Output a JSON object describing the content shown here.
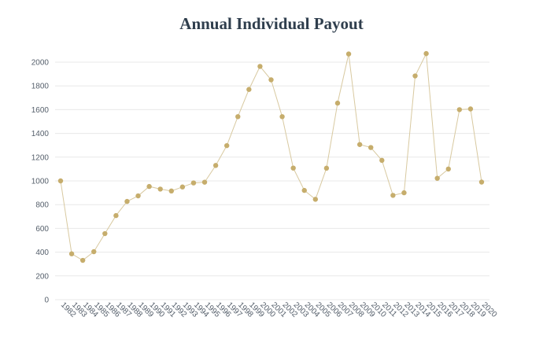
{
  "chart_data": {
    "type": "line",
    "title": "Annual Individual Payout",
    "xlabel": "",
    "ylabel": "",
    "ylim": [
      0,
      2000
    ],
    "yticks": [
      0,
      200,
      400,
      600,
      800,
      1000,
      1200,
      1400,
      1600,
      1800,
      2000
    ],
    "grid": true,
    "legend": "none",
    "x": [
      "1982",
      "1983",
      "1984",
      "1985",
      "1986",
      "1987",
      "1988",
      "1989",
      "1990",
      "1991",
      "1992",
      "1993",
      "1994",
      "1995",
      "1996",
      "1997",
      "1998",
      "1999",
      "2000",
      "2001",
      "2002",
      "2003",
      "2004",
      "2005",
      "2006",
      "2007",
      "2008",
      "2009",
      "2010",
      "2011",
      "2012",
      "2013",
      "2014",
      "2015",
      "2016",
      "2017",
      "2018",
      "2019",
      "2020"
    ],
    "series": [
      {
        "name": "",
        "values": [
          1000,
          386,
          331,
          404,
          556,
          708,
          827,
          874,
          953,
          931,
          915,
          949,
          983,
          989,
          1130,
          1297,
          1541,
          1770,
          1964,
          1851,
          1541,
          1108,
          920,
          845,
          1107,
          1655,
          2069,
          1306,
          1281,
          1173,
          878,
          900,
          1884,
          2072,
          1022,
          1100,
          1600,
          1606,
          990
        ]
      }
    ],
    "colors": {
      "line": "#d8c9a0",
      "marker": "#c6ad6c",
      "grid": "#e8e8e8",
      "axis_text": "#555f6b",
      "title": "#2f3e4d"
    }
  }
}
